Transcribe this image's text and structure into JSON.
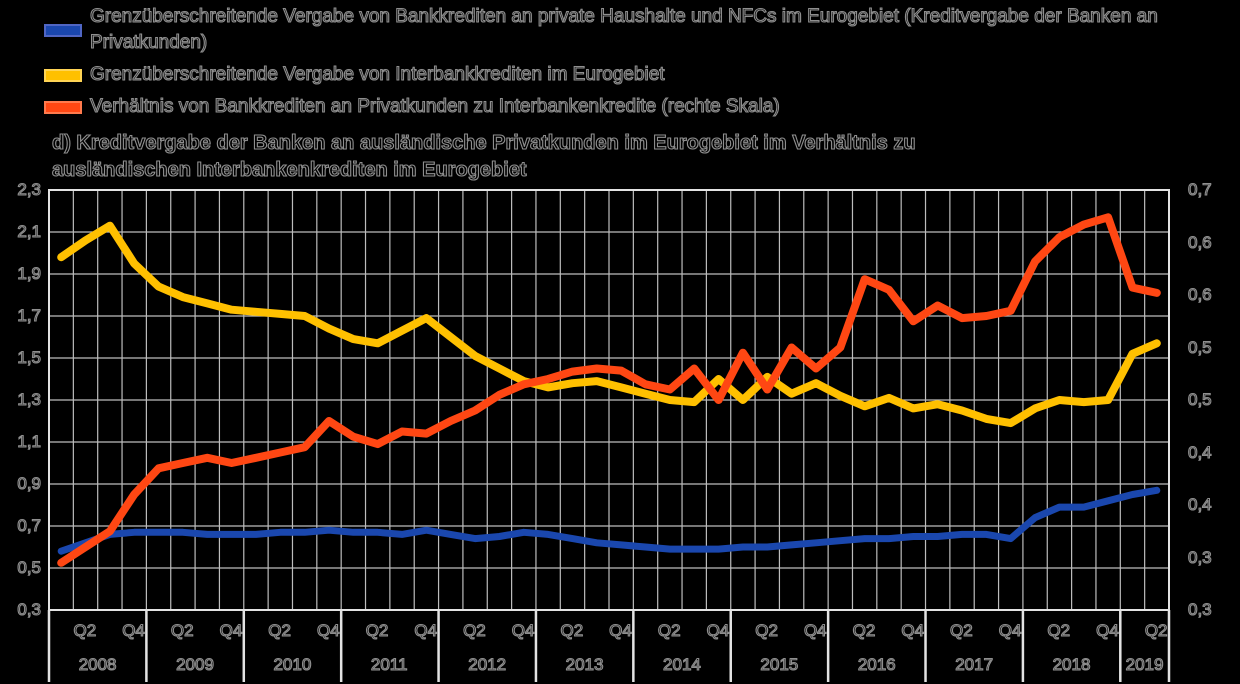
{
  "legend": {
    "items": [
      {
        "label": "Grenzüberschreitende Vergabe von Bankkrediten an private Haushalte und NFCs im Eurogebiet (Kreditvergabe der Banken an Privatkunden)",
        "color": "#1A47AE",
        "border": "#5066C4"
      },
      {
        "label": "Grenzüberschreitende Vergabe von Interbankkrediten im Eurogebiet",
        "color": "#FFC000",
        "border": "#FFD455"
      },
      {
        "label": "Verhältnis von Bankkrediten an Privatkunden zu Interbankenkredite (rechte Skala)",
        "color": "#FF4713",
        "border": "#FF7A4D"
      }
    ]
  },
  "title": {
    "lines": [
      "d) Kreditvergabe der Banken an ausländische Privatkunden im Eurogebiet im Verhältnis zu",
      "ausländischen Interbankenkrediten im Eurogebiet"
    ]
  },
  "chart_data": {
    "type": "line",
    "background": "#000000",
    "grid": true,
    "grid_color": "#BDBDBD",
    "frame_color": "#E3E3E3",
    "x_years": [
      "2008",
      "2009",
      "2010",
      "2011",
      "2012",
      "2013",
      "2014",
      "2015",
      "2016",
      "2017",
      "2018",
      "2019"
    ],
    "quarters_per_year": [
      4,
      4,
      4,
      4,
      4,
      4,
      4,
      4,
      4,
      4,
      4,
      2
    ],
    "quarter_tick_labels": [
      "Q2",
      "Q4"
    ],
    "left_axis": {
      "min": 0.3,
      "max": 2.3,
      "step": 0.2,
      "tick_labels": [
        "2,3",
        "2,1",
        "1,9",
        "1,7",
        "1,5",
        "1,3",
        "1,1",
        "0,9",
        "0,7",
        "0,5",
        "0,3"
      ]
    },
    "right_axis": {
      "min": 0.3,
      "max": 0.7,
      "step": 0.05,
      "tick_labels": [
        "0,7",
        "0,6",
        "0,6",
        "0,5",
        "0,5",
        "0,4",
        "0,4",
        "0,3",
        "0,3"
      ]
    },
    "series": [
      {
        "name": "Grenzüberschreitende Vergabe von Bankkrediten an private Haushalte und NFCs im Eurogebiet (Kreditvergabe der Banken an Privatkunden)",
        "axis": "left",
        "color": "#1A47AE",
        "width": 7,
        "values": [
          0.58,
          0.62,
          0.66,
          0.67,
          0.67,
          0.67,
          0.66,
          0.66,
          0.66,
          0.67,
          0.67,
          0.68,
          0.67,
          0.67,
          0.66,
          0.68,
          0.66,
          0.64,
          0.65,
          0.67,
          0.66,
          0.64,
          0.62,
          0.61,
          0.6,
          0.59,
          0.59,
          0.59,
          0.6,
          0.6,
          0.61,
          0.62,
          0.63,
          0.64,
          0.64,
          0.65,
          0.65,
          0.66,
          0.66,
          0.64,
          0.74,
          0.79,
          0.79,
          0.82,
          0.85,
          0.87
        ]
      },
      {
        "name": "Grenzüberschreitende Vergabe von Interbankkrediten im Eurogebiet",
        "axis": "left",
        "color": "#FFC000",
        "width": 8,
        "values": [
          1.98,
          2.06,
          2.13,
          1.95,
          1.84,
          1.79,
          1.76,
          1.73,
          1.72,
          1.71,
          1.7,
          1.64,
          1.59,
          1.57,
          1.63,
          1.69,
          1.6,
          1.51,
          1.45,
          1.39,
          1.36,
          1.38,
          1.39,
          1.36,
          1.33,
          1.3,
          1.29,
          1.4,
          1.3,
          1.41,
          1.33,
          1.38,
          1.32,
          1.27,
          1.31,
          1.26,
          1.28,
          1.25,
          1.21,
          1.19,
          1.26,
          1.3,
          1.29,
          1.3,
          1.52,
          1.57
        ]
      },
      {
        "name": "Verhältnis von Bankkrediten an Privatkunden zu Interbankenkredite (rechte Skala)",
        "axis": "right",
        "color": "#FF4713",
        "width": 8,
        "values": [
          0.345,
          0.36,
          0.375,
          0.41,
          0.435,
          0.44,
          0.445,
          0.44,
          0.445,
          0.45,
          0.455,
          0.48,
          0.465,
          0.458,
          0.47,
          0.468,
          0.48,
          0.49,
          0.505,
          0.515,
          0.52,
          0.527,
          0.53,
          0.528,
          0.515,
          0.51,
          0.53,
          0.5,
          0.545,
          0.51,
          0.55,
          0.53,
          0.55,
          0.615,
          0.605,
          0.575,
          0.59,
          0.578,
          0.58,
          0.585,
          0.632,
          0.655,
          0.667,
          0.674,
          0.607,
          0.602
        ]
      }
    ]
  }
}
